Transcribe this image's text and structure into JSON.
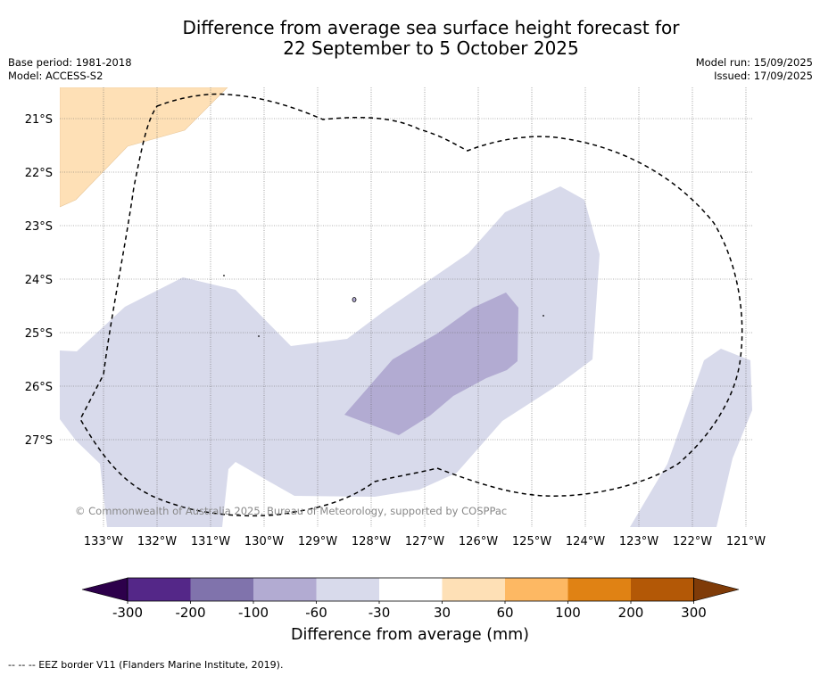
{
  "title": {
    "line1": "Difference from average sea surface height forecast for",
    "line2": "22 September to 5 October 2025"
  },
  "meta": {
    "base_period": "Base period: 1981-2018",
    "model": "Model: ACCESS-S2",
    "model_run": "Model run: 15/09/2025",
    "issued": "Issued: 17/09/2025"
  },
  "map": {
    "lat_labels": [
      "21°S",
      "22°S",
      "23°S",
      "24°S",
      "25°S",
      "26°S",
      "27°S"
    ],
    "lon_labels": [
      "133°W",
      "132°W",
      "131°W",
      "130°W",
      "129°W",
      "128°W",
      "127°W",
      "126°W",
      "125°W",
      "124°W",
      "123°W",
      "122°W",
      "121°W"
    ],
    "copyright": "© Commonwealth of Australia 2025, Bureau of Meteorology, supported by COSPPac"
  },
  "colorbar": {
    "title": "Difference from average (mm)",
    "tick_labels": [
      "-300",
      "-200",
      "-100",
      "-60",
      "-30",
      "30",
      "60",
      "100",
      "200",
      "300"
    ],
    "colors": {
      "under": "#2d004b",
      "bins": [
        "#542788",
        "#8073ac",
        "#b2abd2",
        "#d8daeb",
        "#ffffff",
        "#fee0b6",
        "#fdb863",
        "#e08214",
        "#b35806"
      ],
      "over": "#7f3b08"
    }
  },
  "footer": "--  --  -- EEZ border V11 (Flanders Marine Institute, 2019)."
}
